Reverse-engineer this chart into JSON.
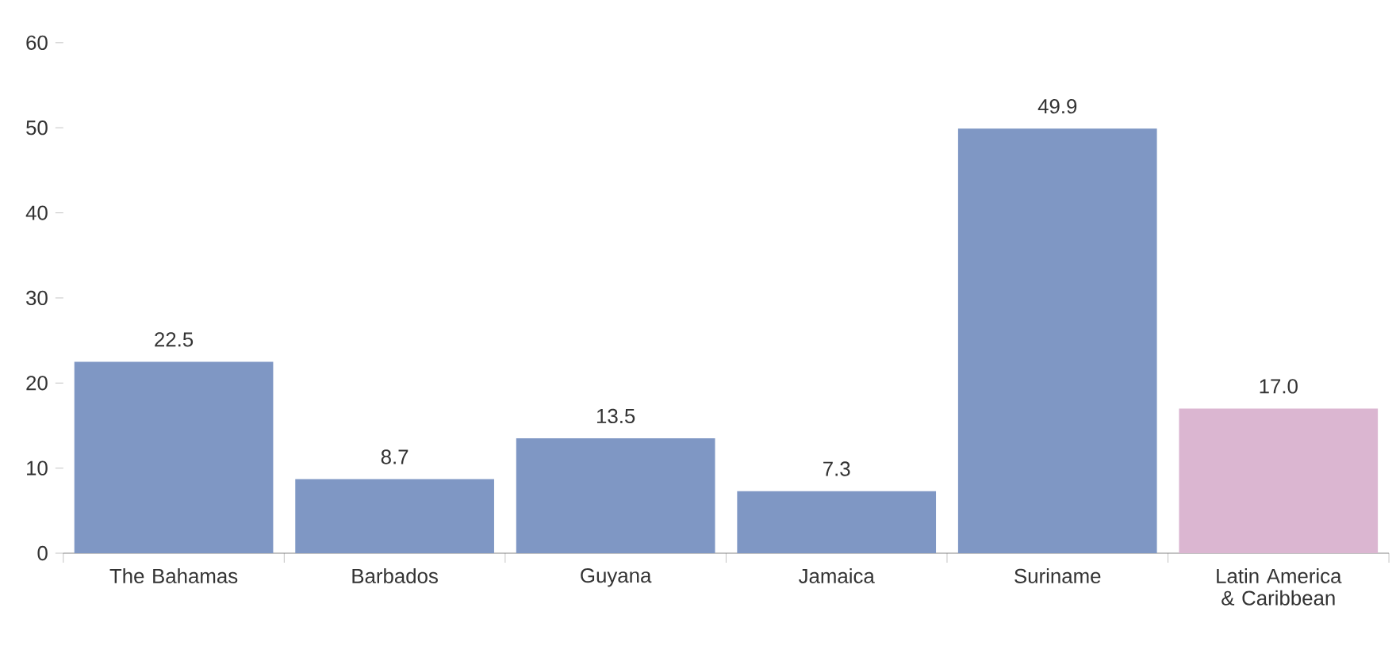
{
  "chart_data": {
    "type": "bar",
    "categories": [
      "The Bahamas",
      "Barbados",
      "Guyana",
      "Jamaica",
      "Suriname",
      "Latin America & Caribbean"
    ],
    "values": [
      22.5,
      8.7,
      13.5,
      7.3,
      49.9,
      17.0
    ],
    "value_labels": [
      "22.5",
      "8.7",
      "13.5",
      "7.3",
      "49.9",
      "17.0"
    ],
    "colors": [
      "#7f97c4",
      "#7f97c4",
      "#7f97c4",
      "#7f97c4",
      "#7f97c4",
      "#dbb6d1"
    ],
    "ylim": [
      0,
      60
    ],
    "yticks": [
      0,
      10,
      20,
      30,
      40,
      50,
      60
    ],
    "grid": false
  }
}
